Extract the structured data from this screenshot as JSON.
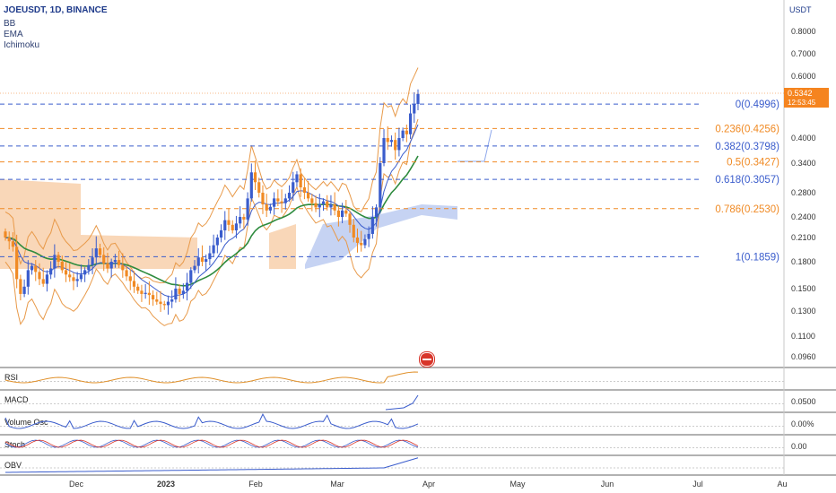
{
  "header": {
    "symbol_line": "JOEUSDT, 1D, BINANCE",
    "indicators": [
      "BB",
      "EMA",
      "Ichimoku"
    ]
  },
  "axis": {
    "currency": "USDT",
    "price_ticks": [
      "0.8000",
      "0.7000",
      "0.6000",
      "0.5000",
      "0.4000",
      "0.3400",
      "0.2800",
      "0.2400",
      "0.2100",
      "0.1800",
      "0.1500",
      "0.1300",
      "0.1100",
      "0.0960"
    ],
    "month_labels": [
      "Dec",
      "2023",
      "Feb",
      "Mar",
      "Apr",
      "May",
      "Jun",
      "Jul",
      "Au"
    ]
  },
  "last_price": {
    "value": "0.5342",
    "countdown": "12:53:45"
  },
  "fib_levels": [
    {
      "label": "0(0.4996)",
      "color": "#3a5ccc"
    },
    {
      "label": "0.236(0.4256)",
      "color": "#f08a24"
    },
    {
      "label": "0.382(0.3798)",
      "color": "#3a5ccc"
    },
    {
      "label": "0.5(0.3427)",
      "color": "#f08a24"
    },
    {
      "label": "0.618(0.3057)",
      "color": "#3a5ccc"
    },
    {
      "label": "0.786(0.2530)",
      "color": "#f08a24"
    },
    {
      "label": "1(0.1859)",
      "color": "#3a5ccc"
    }
  ],
  "panes": [
    {
      "name": "RSI",
      "ticks": []
    },
    {
      "name": "MACD",
      "ticks": [
        "0.0500"
      ]
    },
    {
      "name": "Volume Osc",
      "ticks": [
        "0.00%"
      ]
    },
    {
      "name": "Stoch",
      "ticks": [
        "0.00"
      ]
    },
    {
      "name": "OBV",
      "ticks": []
    }
  ],
  "colors": {
    "up": "#3a5ccc",
    "down": "#f08a24",
    "ema": "#2e8b3e",
    "bb": "#e89a4a",
    "cloud_bear": "#f7c9a0",
    "cloud_bull": "#b8c8f0"
  },
  "chart_data": {
    "type": "candlestick",
    "title": "JOEUSDT, 1D, BINANCE",
    "ylabel": "USDT",
    "y_scale": "log",
    "ylim": [
      0.088,
      0.88
    ],
    "x_period": "2022-11-14 to 2023-08-03 (daily)",
    "x_ticks": [
      "Dec",
      "2023",
      "Feb",
      "Mar",
      "Apr",
      "May",
      "Jun",
      "Jul",
      "Au"
    ],
    "closes": [
      0.21,
      0.205,
      0.198,
      0.16,
      0.145,
      0.152,
      0.17,
      0.175,
      0.168,
      0.16,
      0.155,
      0.165,
      0.172,
      0.188,
      0.18,
      0.17,
      0.165,
      0.162,
      0.158,
      0.16,
      0.165,
      0.17,
      0.176,
      0.185,
      0.196,
      0.188,
      0.178,
      0.172,
      0.18,
      0.182,
      0.176,
      0.17,
      0.163,
      0.158,
      0.152,
      0.148,
      0.145,
      0.146,
      0.144,
      0.14,
      0.138,
      0.136,
      0.135,
      0.138,
      0.14,
      0.15,
      0.145,
      0.148,
      0.156,
      0.17,
      0.175,
      0.185,
      0.18,
      0.183,
      0.19,
      0.2,
      0.21,
      0.22,
      0.235,
      0.228,
      0.22,
      0.23,
      0.24,
      0.236,
      0.27,
      0.32,
      0.3,
      0.28,
      0.26,
      0.25,
      0.256,
      0.27,
      0.265,
      0.262,
      0.27,
      0.28,
      0.3,
      0.316,
      0.29,
      0.28,
      0.27,
      0.262,
      0.255,
      0.26,
      0.265,
      0.255,
      0.26,
      0.25,
      0.24,
      0.25,
      0.245,
      0.228,
      0.21,
      0.203,
      0.2,
      0.208,
      0.215,
      0.24,
      0.255,
      0.34,
      0.4,
      0.39,
      0.395,
      0.37,
      0.4,
      0.42,
      0.41,
      0.47,
      0.5,
      0.5342
    ],
    "last_close": 0.5342,
    "fibonacci_retracement": [
      {
        "level": 0,
        "price": 0.4996
      },
      {
        "level": 0.236,
        "price": 0.4256
      },
      {
        "level": 0.382,
        "price": 0.3798
      },
      {
        "level": 0.5,
        "price": 0.3427
      },
      {
        "level": 0.618,
        "price": 0.3057
      },
      {
        "level": 0.786,
        "price": 0.253
      },
      {
        "level": 1,
        "price": 0.1859
      }
    ],
    "indicators": [
      "BB",
      "EMA",
      "Ichimoku",
      "RSI",
      "MACD",
      "Volume Osc",
      "Stoch",
      "OBV"
    ]
  }
}
